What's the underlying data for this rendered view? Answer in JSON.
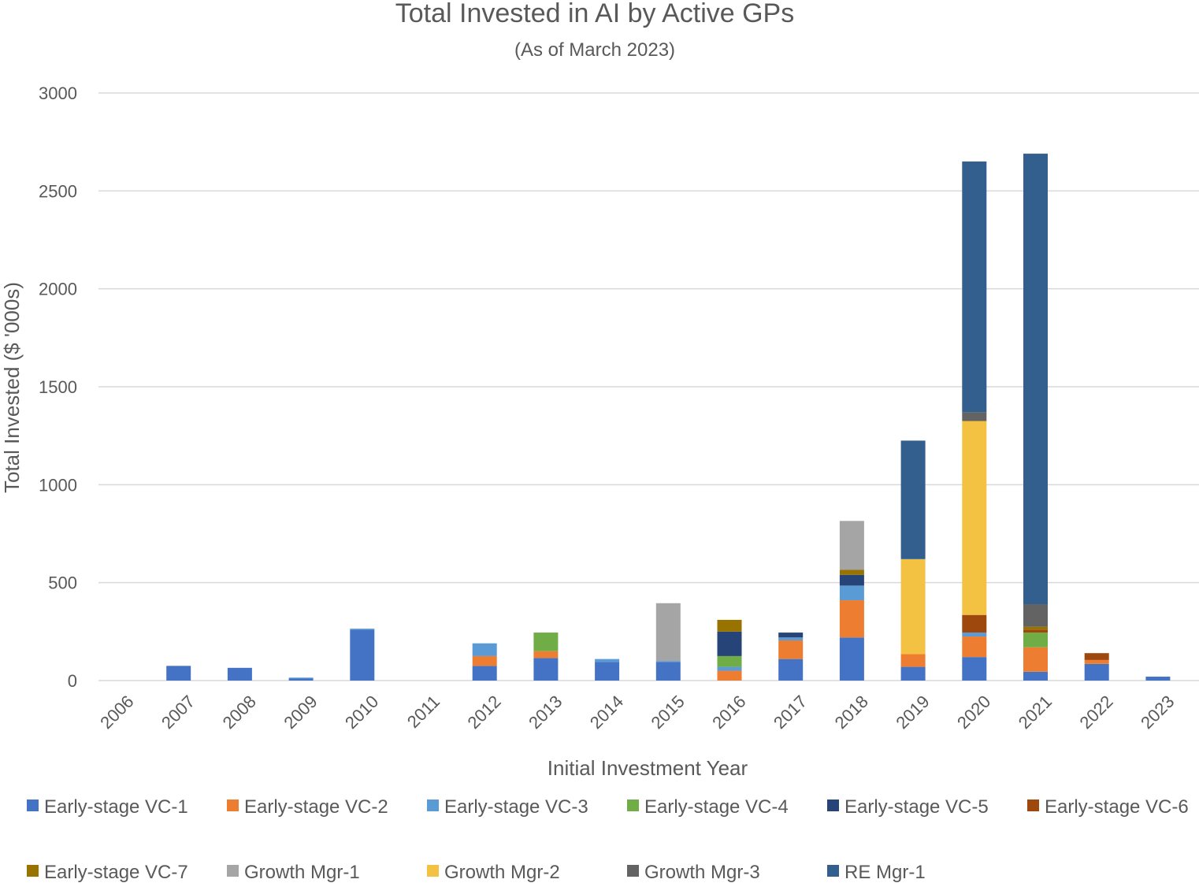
{
  "chart_data": {
    "type": "bar",
    "stacked": true,
    "title": "Total Invested in AI by Active GPs",
    "subtitle": "(As of March 2023)",
    "xlabel": "Initial Investment Year",
    "ylabel": "Total Invested ($ '000s)",
    "ylim": [
      0,
      3000
    ],
    "yticks": [
      "0",
      "500",
      "1000",
      "1500",
      "2000",
      "2500",
      "3000"
    ],
    "grid": true,
    "legend_position": "bottom",
    "categories": [
      "2006",
      "2007",
      "2008",
      "2009",
      "2010",
      "2011",
      "2012",
      "2013",
      "2014",
      "2015",
      "2016",
      "2017",
      "2018",
      "2019",
      "2020",
      "2021",
      "2022",
      "2023"
    ],
    "series": [
      {
        "name": "Early-stage VC-1",
        "color": "#4472C4",
        "values": [
          0,
          75,
          65,
          10,
          260,
          0,
          75,
          115,
          95,
          95,
          0,
          110,
          220,
          70,
          120,
          45,
          85,
          20
        ]
      },
      {
        "name": "Early-stage VC-2",
        "color": "#ED7D31",
        "values": [
          0,
          0,
          0,
          0,
          0,
          0,
          50,
          35,
          0,
          0,
          50,
          95,
          190,
          65,
          105,
          125,
          20,
          0
        ]
      },
      {
        "name": "Early-stage VC-3",
        "color": "#5B9BD5",
        "values": [
          0,
          0,
          0,
          5,
          5,
          0,
          65,
          0,
          15,
          5,
          20,
          15,
          75,
          0,
          20,
          0,
          0,
          0
        ]
      },
      {
        "name": "Early-stage VC-4",
        "color": "#70AD47",
        "values": [
          0,
          0,
          0,
          0,
          0,
          0,
          0,
          95,
          0,
          0,
          55,
          0,
          0,
          0,
          0,
          75,
          0,
          0
        ]
      },
      {
        "name": "Early-stage VC-5",
        "color": "#264478",
        "values": [
          0,
          0,
          0,
          0,
          0,
          0,
          0,
          0,
          0,
          0,
          125,
          25,
          55,
          0,
          0,
          0,
          0,
          0
        ]
      },
      {
        "name": "Early-stage VC-6",
        "color": "#9E480E",
        "values": [
          0,
          0,
          0,
          0,
          0,
          0,
          0,
          0,
          0,
          0,
          0,
          0,
          0,
          0,
          90,
          15,
          35,
          0
        ]
      },
      {
        "name": "Early-stage VC-7",
        "color": "#997300",
        "values": [
          0,
          0,
          0,
          0,
          0,
          0,
          0,
          0,
          0,
          0,
          60,
          0,
          25,
          0,
          0,
          15,
          0,
          0
        ]
      },
      {
        "name": "Growth Mgr-1",
        "color": "#A5A5A5",
        "values": [
          0,
          0,
          0,
          0,
          0,
          0,
          0,
          0,
          0,
          295,
          0,
          0,
          250,
          0,
          0,
          0,
          0,
          0
        ]
      },
      {
        "name": "Growth Mgr-2",
        "color": "#F4C242",
        "values": [
          0,
          0,
          0,
          0,
          0,
          0,
          0,
          0,
          0,
          0,
          0,
          0,
          0,
          485,
          990,
          0,
          0,
          0
        ]
      },
      {
        "name": "Growth Mgr-3",
        "color": "#636363",
        "values": [
          0,
          0,
          0,
          0,
          0,
          0,
          0,
          0,
          0,
          0,
          0,
          0,
          0,
          0,
          45,
          115,
          0,
          0
        ]
      },
      {
        "name": "RE Mgr-1",
        "color": "#335F8F",
        "values": [
          0,
          0,
          0,
          0,
          0,
          0,
          0,
          0,
          0,
          0,
          0,
          0,
          0,
          605,
          1280,
          2300,
          0,
          0
        ]
      }
    ]
  }
}
